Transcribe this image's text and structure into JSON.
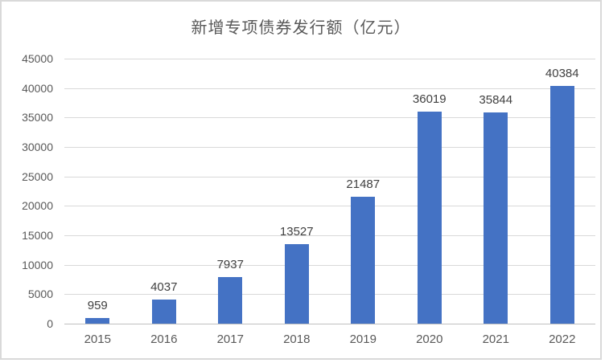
{
  "chart_data": {
    "type": "bar",
    "title": "新增专项债券发行额（亿元）",
    "categories": [
      "2015",
      "2016",
      "2017",
      "2018",
      "2019",
      "2020",
      "2021",
      "2022"
    ],
    "values": [
      959,
      4037,
      7937,
      13527,
      21487,
      36019,
      35844,
      40384
    ],
    "xlabel": "",
    "ylabel": "",
    "ylim": [
      0,
      45000
    ],
    "yticks": [
      0,
      5000,
      10000,
      15000,
      20000,
      25000,
      30000,
      35000,
      40000,
      45000
    ],
    "grid": "horizontal",
    "legend": "none",
    "data_labels": "above-bars",
    "colors": {
      "bar_fill": "#4472c4",
      "gridline": "#d9d9d9",
      "axis_line": "#bfbfbf",
      "title_text": "#595959",
      "tick_text": "#595959",
      "data_label_text": "#404040",
      "frame_border": "#d9d9d9",
      "background": "#ffffff"
    }
  }
}
